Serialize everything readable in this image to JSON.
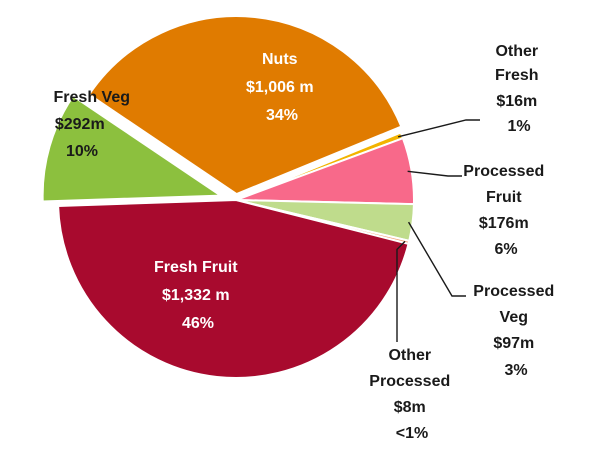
{
  "chart_data": {
    "type": "pie",
    "title": "",
    "slices": [
      {
        "key": "nuts",
        "name": "Nuts",
        "value": 1006,
        "value_label": "$1,006 m",
        "percent_label": "34%",
        "color": "#E07B00"
      },
      {
        "key": "other_fresh",
        "name": "Other Fresh",
        "value": 16,
        "value_label": "$16m",
        "percent_label": "1%",
        "color": "#F2B400"
      },
      {
        "key": "processed_fruit",
        "name": "Processed Fruit",
        "value": 176,
        "value_label": "$176m",
        "percent_label": "6%",
        "color": "#F8698A"
      },
      {
        "key": "processed_veg",
        "name": "Processed Veg",
        "value": 97,
        "value_label": "$97m",
        "percent_label": "3%",
        "color": "#BFDC8C"
      },
      {
        "key": "other_processed",
        "name": "Other Processed",
        "value": 8,
        "value_label": "$8m",
        "percent_label": "<1%",
        "color": "#F5A37A"
      },
      {
        "key": "fresh_fruit",
        "name": "Fresh Fruit",
        "value": 1332,
        "value_label": "$1,332 m",
        "percent_label": "46%",
        "color": "#A80A2E"
      },
      {
        "key": "fresh_veg",
        "name": "Fresh Veg",
        "value": 292,
        "value_label": "$292m",
        "percent_label": "10%",
        "color": "#8CC03E"
      }
    ]
  }
}
